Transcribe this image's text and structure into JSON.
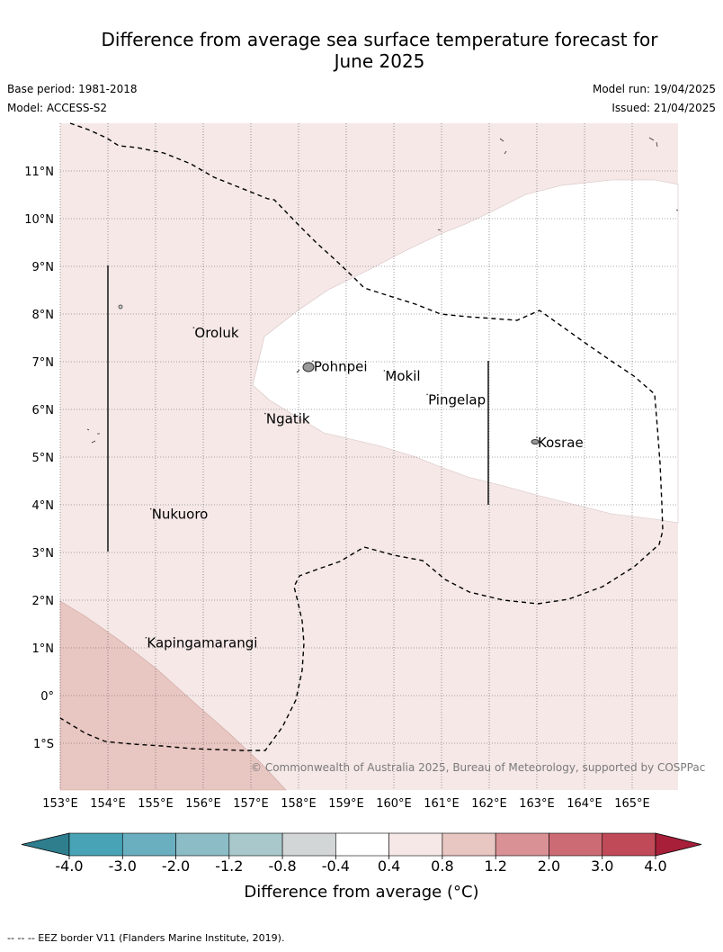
{
  "title": {
    "line1": "Difference from average sea surface temperature forecast for",
    "line2": "June 2025"
  },
  "meta": {
    "base_period": "Base period: 1981-2018",
    "model": "Model: ACCESS-S2",
    "model_run": "Model run: 19/04/2025",
    "issued": "Issued: 21/04/2025"
  },
  "map": {
    "lon_labels": [
      "153°E",
      "154°E",
      "155°E",
      "156°E",
      "157°E",
      "158°E",
      "159°E",
      "160°E",
      "161°E",
      "162°E",
      "163°E",
      "164°E",
      "165°E"
    ],
    "lat_labels": [
      "11°N",
      "10°N",
      "9°N",
      "8°N",
      "7°N",
      "6°N",
      "5°N",
      "4°N",
      "3°N",
      "2°N",
      "1°N",
      "0°",
      "1°S"
    ],
    "places": [
      {
        "name": "Oroluk",
        "lon": 155.8,
        "lat": 7.6
      },
      {
        "name": "Pohnpei",
        "lon": 158.3,
        "lat": 6.9
      },
      {
        "name": "Mokil",
        "lon": 159.8,
        "lat": 6.7
      },
      {
        "name": "Pingelap",
        "lon": 160.7,
        "lat": 6.2
      },
      {
        "name": "Ngatik",
        "lon": 157.3,
        "lat": 5.8
      },
      {
        "name": "Kosrae",
        "lon": 163.0,
        "lat": 5.3
      },
      {
        "name": "Nukuoro",
        "lon": 154.9,
        "lat": 3.8
      },
      {
        "name": "Kapingamarangi",
        "lon": 154.8,
        "lat": 1.1
      }
    ],
    "copyright": "© Commonwealth of Australia 2025, Bureau of Meteorology, supported by COSPPac"
  },
  "colorbar": {
    "title": "Difference from average (°C)",
    "ticks": [
      "-4.0",
      "-3.0",
      "-2.0",
      "-1.2",
      "-0.8",
      "-0.4",
      "0.4",
      "0.8",
      "1.2",
      "2.0",
      "3.0",
      "4.0"
    ],
    "colors": [
      "#47a3b5",
      "#69afc0",
      "#8cbcc6",
      "#a8c8cb",
      "#d3d6d6",
      "#ffffff",
      "#f5e8e7",
      "#e8c6c1",
      "#d99195",
      "#cd6b74",
      "#c04a57"
    ],
    "under_color": "#2e7e8e",
    "over_color": "#a81f3a"
  },
  "footer": "-- -- -- EEZ border V11 (Flanders Marine Institute, 2019)."
}
